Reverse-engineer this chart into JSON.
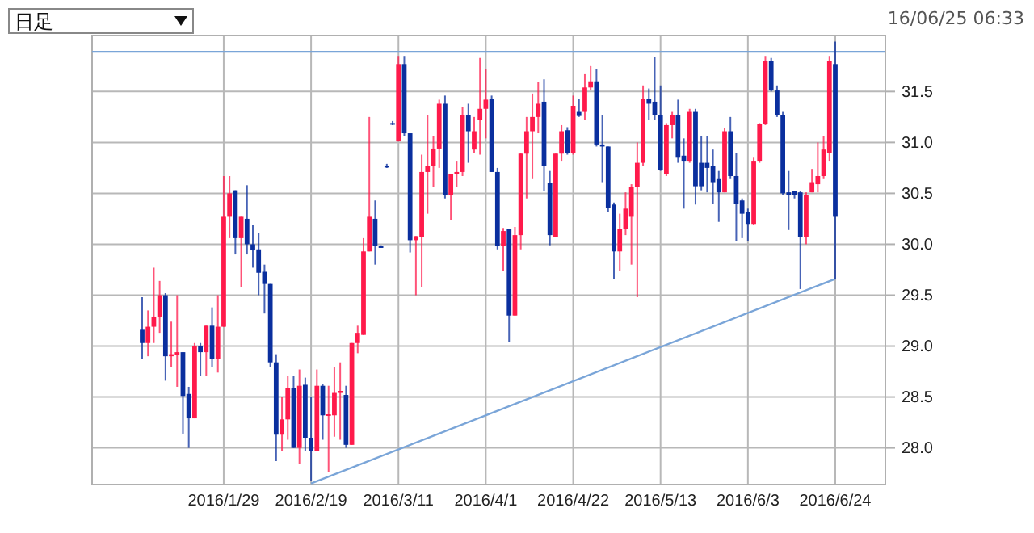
{
  "chart_data": {
    "type": "candlestick",
    "annotations": [
      "日足",
      "16/06/25 06:33"
    ],
    "categories": [
      null,
      null,
      null,
      null,
      null,
      null,
      null,
      null,
      null,
      null,
      null,
      null,
      null,
      null,
      null,
      null,
      null,
      null,
      null,
      null,
      null,
      null,
      "2016/1/29",
      null,
      null,
      null,
      null,
      null,
      null,
      null,
      null,
      null,
      null,
      null,
      null,
      null,
      null,
      "2016/2/19",
      null,
      null,
      null,
      null,
      null,
      null,
      null,
      null,
      null,
      null,
      null,
      null,
      null,
      null,
      "2016/3/11",
      null,
      null,
      null,
      null,
      null,
      null,
      null,
      null,
      null,
      null,
      null,
      null,
      null,
      null,
      "2016/4/1",
      null,
      null,
      null,
      null,
      null,
      null,
      null,
      null,
      null,
      null,
      null,
      null,
      null,
      null,
      "2016/4/22",
      null,
      null,
      null,
      null,
      null,
      null,
      null,
      null,
      null,
      null,
      null,
      null,
      null,
      null,
      "2016/5/13",
      null,
      null,
      null,
      null,
      null,
      null,
      null,
      null,
      null,
      null,
      null,
      null,
      null,
      null,
      "2016/6/3",
      null,
      null,
      null,
      null,
      null,
      null,
      null,
      null,
      null,
      null,
      null,
      null,
      null,
      null,
      "2016/6/24",
      null,
      null,
      null,
      null,
      null,
      null,
      null,
      null
    ],
    "ohlc": [
      null,
      null,
      null,
      null,
      null,
      null,
      null,
      null,
      [
        29.16,
        29.48,
        28.87,
        29.03
      ],
      [
        29.03,
        29.35,
        28.9,
        29.19
      ],
      [
        29.19,
        29.77,
        29.03,
        29.29
      ],
      [
        29.29,
        29.64,
        29.13,
        29.5
      ],
      [
        29.5,
        29.52,
        28.66,
        28.9
      ],
      [
        28.9,
        29.24,
        28.79,
        28.92
      ],
      [
        28.91,
        29.5,
        28.6,
        28.94
      ],
      [
        28.94,
        28.94,
        28.14,
        28.51
      ],
      [
        28.53,
        28.6,
        28.0,
        28.29
      ],
      [
        28.29,
        29.03,
        28.29,
        29.0
      ],
      [
        29.0,
        29.03,
        28.71,
        28.94
      ],
      [
        28.94,
        29.2,
        28.71,
        29.2
      ],
      [
        29.2,
        29.38,
        28.79,
        28.87
      ],
      [
        28.87,
        29.5,
        28.74,
        29.19
      ],
      [
        29.19,
        30.67,
        29.19,
        30.27
      ],
      [
        30.27,
        30.67,
        30.06,
        30.5
      ],
      [
        30.53,
        30.53,
        29.9,
        30.06
      ],
      [
        30.06,
        30.27,
        29.58,
        30.27
      ],
      [
        30.25,
        30.58,
        29.9,
        30.0
      ],
      [
        30.0,
        30.19,
        29.77,
        29.94
      ],
      [
        29.95,
        30.11,
        29.5,
        29.72
      ],
      [
        29.73,
        29.8,
        29.32,
        29.61
      ],
      [
        29.61,
        29.61,
        28.79,
        28.84
      ],
      [
        28.84,
        28.92,
        27.87,
        28.13
      ],
      [
        28.13,
        28.5,
        27.97,
        28.28
      ],
      [
        28.28,
        28.71,
        28.08,
        28.59
      ],
      [
        28.59,
        28.71,
        28.0,
        28.0
      ],
      [
        28.0,
        28.77,
        27.84,
        28.61
      ],
      [
        28.62,
        28.69,
        27.97,
        28.1
      ],
      [
        28.1,
        28.5,
        27.68,
        27.97
      ],
      [
        27.97,
        28.77,
        27.97,
        28.61
      ],
      [
        28.61,
        28.63,
        28.08,
        28.32
      ],
      [
        28.32,
        28.61,
        27.76,
        28.33
      ],
      [
        28.32,
        28.79,
        28.11,
        28.54
      ],
      [
        28.54,
        28.84,
        28.08,
        28.56
      ],
      [
        28.52,
        28.61,
        28.0,
        28.03
      ],
      [
        28.03,
        29.03,
        28.03,
        29.03
      ],
      [
        29.03,
        29.2,
        28.93,
        29.13
      ],
      [
        29.11,
        30.06,
        29.11,
        29.93
      ],
      [
        29.93,
        31.25,
        29.93,
        30.27
      ],
      [
        30.25,
        30.43,
        29.8,
        29.98
      ],
      [
        29.98,
        29.99,
        29.97,
        29.98
      ],
      [
        30.77,
        30.79,
        30.75,
        30.77
      ],
      [
        31.19,
        31.21,
        31.17,
        31.19
      ],
      [
        31.01,
        31.85,
        31.01,
        31.77
      ],
      [
        31.77,
        31.85,
        31.06,
        31.09
      ],
      [
        31.09,
        31.09,
        29.92,
        30.04
      ],
      [
        30.04,
        30.08,
        29.5,
        30.08
      ],
      [
        30.07,
        30.88,
        29.58,
        30.71
      ],
      [
        30.71,
        31.27,
        30.3,
        30.77
      ],
      [
        30.77,
        31.06,
        30.56,
        30.94
      ],
      [
        30.94,
        31.42,
        30.75,
        31.38
      ],
      [
        31.38,
        31.46,
        30.45,
        30.48
      ],
      [
        30.48,
        30.69,
        30.24,
        30.69
      ],
      [
        30.69,
        30.82,
        30.56,
        30.71
      ],
      [
        30.71,
        31.35,
        30.67,
        31.27
      ],
      [
        31.27,
        31.38,
        30.8,
        31.11
      ],
      [
        30.93,
        31.25,
        30.9,
        31.11
      ],
      [
        31.22,
        31.83,
        30.88,
        31.33
      ],
      [
        31.33,
        31.72,
        31.04,
        31.42
      ],
      [
        31.43,
        31.46,
        30.71,
        30.71
      ],
      [
        30.71,
        30.75,
        29.95,
        29.98
      ],
      [
        29.98,
        30.16,
        29.74,
        30.13
      ],
      [
        30.15,
        30.15,
        29.04,
        29.3
      ],
      [
        29.3,
        30.17,
        29.3,
        30.09
      ],
      [
        30.09,
        30.9,
        29.95,
        30.89
      ],
      [
        30.89,
        31.25,
        30.45,
        31.11
      ],
      [
        31.11,
        31.48,
        30.64,
        31.25
      ],
      [
        31.25,
        31.59,
        31.09,
        31.38
      ],
      [
        31.4,
        31.62,
        30.52,
        30.77
      ],
      [
        30.6,
        30.72,
        29.99,
        30.09
      ],
      [
        30.07,
        30.89,
        30.07,
        30.89
      ],
      [
        30.89,
        31.17,
        30.82,
        31.11
      ],
      [
        31.12,
        31.15,
        30.88,
        30.9
      ],
      [
        30.9,
        31.46,
        30.88,
        31.36
      ],
      [
        31.3,
        31.43,
        31.25,
        31.26
      ],
      [
        31.3,
        31.67,
        31.22,
        31.54
      ],
      [
        31.54,
        31.75,
        31.51,
        31.6
      ],
      [
        31.6,
        31.72,
        30.96,
        30.98
      ],
      [
        30.98,
        31.27,
        30.61,
        30.96
      ],
      [
        30.96,
        30.96,
        30.32,
        30.36
      ],
      [
        30.39,
        30.41,
        29.66,
        29.93
      ],
      [
        29.93,
        30.3,
        29.74,
        30.15
      ],
      [
        30.15,
        30.51,
        30.09,
        30.35
      ],
      [
        30.27,
        30.59,
        29.8,
        30.56
      ],
      [
        30.56,
        31.0,
        29.48,
        30.8
      ],
      [
        30.8,
        31.56,
        30.77,
        31.43
      ],
      [
        31.43,
        31.53,
        31.22,
        31.38
      ],
      [
        31.4,
        31.84,
        31.22,
        31.27
      ],
      [
        31.27,
        31.56,
        30.72,
        30.73
      ],
      [
        30.69,
        31.19,
        30.67,
        31.17
      ],
      [
        31.17,
        31.3,
        31.04,
        31.27
      ],
      [
        31.27,
        31.42,
        30.8,
        30.85
      ],
      [
        30.87,
        31.04,
        30.35,
        30.82
      ],
      [
        30.82,
        31.33,
        30.8,
        31.3
      ],
      [
        31.3,
        31.33,
        30.39,
        30.57
      ],
      [
        30.8,
        31.06,
        30.53,
        30.57
      ],
      [
        30.8,
        31.06,
        30.51,
        30.75
      ],
      [
        30.77,
        30.93,
        30.4,
        30.61
      ],
      [
        30.64,
        30.72,
        30.22,
        30.51
      ],
      [
        30.51,
        31.14,
        30.51,
        31.11
      ],
      [
        31.11,
        31.25,
        30.64,
        30.67
      ],
      [
        30.67,
        30.9,
        30.03,
        30.4
      ],
      [
        30.43,
        30.45,
        30.06,
        30.3
      ],
      [
        30.32,
        30.35,
        30.03,
        30.2
      ],
      [
        30.2,
        30.85,
        30.19,
        30.82
      ],
      [
        30.82,
        31.19,
        30.8,
        31.18
      ],
      [
        31.18,
        31.85,
        31.17,
        31.8
      ],
      [
        31.8,
        31.83,
        31.5,
        31.51
      ],
      [
        31.51,
        31.56,
        31.25,
        31.27
      ],
      [
        31.27,
        31.3,
        30.48,
        30.5
      ],
      [
        30.51,
        30.72,
        30.14,
        30.48
      ],
      [
        30.52,
        30.52,
        30.45,
        30.48
      ],
      [
        30.51,
        30.52,
        29.56,
        30.07
      ],
      [
        30.07,
        30.51,
        30.0,
        30.48
      ],
      [
        30.51,
        30.74,
        30.51,
        30.61
      ],
      [
        30.59,
        31.0,
        30.51,
        30.67
      ],
      [
        30.67,
        31.06,
        30.64,
        30.93
      ],
      [
        30.9,
        31.85,
        30.82,
        31.8
      ],
      [
        31.77,
        31.99,
        29.66,
        30.27
      ],
      null,
      null,
      null,
      null,
      null,
      null,
      null,
      null
    ],
    "colors": [
      null,
      null,
      null,
      null,
      null,
      null,
      null,
      null,
      "#0a2f9e",
      "#ff1a4b",
      "#ff1a4b",
      "#ff1a4b",
      "#0a2f9e",
      "#ff1a4b",
      "#ff1a4b",
      "#0a2f9e",
      "#0a2f9e",
      "#ff1a4b",
      "#0a2f9e",
      "#ff1a4b",
      "#0a2f9e",
      "#ff1a4b",
      "#ff1a4b",
      "#ff1a4b",
      "#0a2f9e",
      "#ff1a4b",
      "#0a2f9e",
      "#0a2f9e",
      "#0a2f9e",
      "#0a2f9e",
      "#0a2f9e",
      "#0a2f9e",
      "#ff1a4b",
      "#ff1a4b",
      "#0a2f9e",
      "#ff1a4b",
      "#0a2f9e",
      "#0a2f9e",
      "#ff1a4b",
      "#0a2f9e",
      "#ff1a4b",
      "#ff1a4b",
      "#ff1a4b",
      "#0a2f9e",
      "#ff1a4b",
      "#ff1a4b",
      "#ff1a4b",
      "#ff1a4b",
      "#0a2f9e",
      "#0a2f9e",
      "#0a2f9e",
      "#0a2f9e",
      "#ff1a4b",
      "#0a2f9e",
      "#0a2f9e",
      "#ff1a4b",
      "#ff1a4b",
      "#ff1a4b",
      "#ff1a4b",
      "#ff1a4b",
      "#0a2f9e",
      "#ff1a4b",
      "#ff1a4b",
      "#ff1a4b",
      "#0a2f9e",
      "#ff1a4b",
      "#ff1a4b",
      "#ff1a4b",
      "#0a2f9e",
      "#0a2f9e",
      "#ff1a4b",
      "#0a2f9e",
      "#ff1a4b",
      "#ff1a4b",
      "#ff1a4b",
      "#ff1a4b",
      "#ff1a4b",
      "#0a2f9e",
      "#0a2f9e",
      "#ff1a4b",
      "#ff1a4b",
      "#0a2f9e",
      "#ff1a4b",
      "#0a2f9e",
      "#ff1a4b",
      "#ff1a4b",
      "#0a2f9e",
      "#0a2f9e",
      "#0a2f9e",
      "#0a2f9e",
      "#ff1a4b",
      "#ff1a4b",
      "#ff1a4b",
      "#ff1a4b",
      "#ff1a4b",
      "#0a2f9e",
      "#0a2f9e",
      "#0a2f9e",
      "#ff1a4b",
      "#ff1a4b",
      "#0a2f9e",
      "#0a2f9e",
      "#ff1a4b",
      "#0a2f9e",
      "#0a2f9e",
      "#0a2f9e",
      "#0a2f9e",
      "#0a2f9e",
      "#ff1a4b",
      "#0a2f9e",
      "#0a2f9e",
      "#0a2f9e",
      "#0a2f9e",
      "#ff1a4b",
      "#ff1a4b",
      "#ff1a4b",
      "#0a2f9e",
      "#0a2f9e",
      "#0a2f9e",
      "#0a2f9e",
      "#0a2f9e",
      "#0a2f9e",
      "#ff1a4b",
      "#ff1a4b",
      "#ff1a4b",
      "#ff1a4b",
      "#ff1a4b",
      "#0a2f9e",
      null,
      null,
      null,
      null,
      null,
      null,
      null,
      null
    ],
    "series": [
      {
        "type": "line",
        "color": "#7aa5d8",
        "x": [
          "2016/2/19",
          "2016/6/24"
        ],
        "values": [
          27.65,
          29.66
        ]
      }
    ],
    "ref_lines": [
      {
        "axis": "y",
        "value": 31.89,
        "color": "#7aa5d8"
      }
    ],
    "ylim": [
      27.64,
      32.05
    ],
    "yticks": [
      {
        "value": 28,
        "label": "28.0"
      },
      {
        "value": 28.5,
        "label": "28.5"
      },
      {
        "value": 29,
        "label": "29.0"
      },
      {
        "value": 29.5,
        "label": "29.5"
      },
      {
        "value": 30,
        "label": "30.0"
      },
      {
        "value": 30.5,
        "label": "30.5"
      },
      {
        "value": 31,
        "label": "31.0"
      },
      {
        "value": 31.5,
        "label": "31.5"
      }
    ],
    "grid": true
  }
}
